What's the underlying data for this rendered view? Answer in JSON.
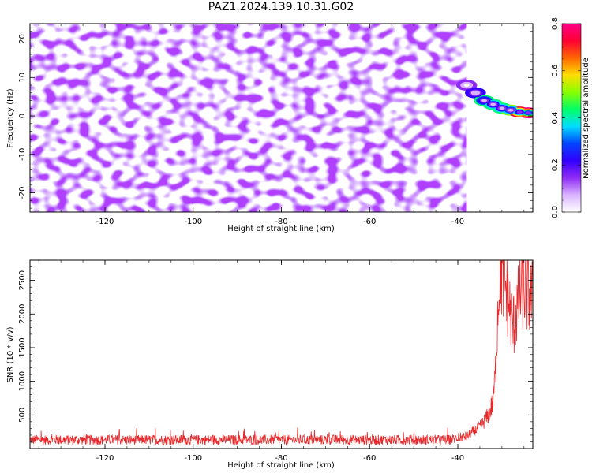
{
  "title": "PAZ1.2024.139.10.31.G02",
  "chart_data": [
    {
      "type": "heatmap",
      "xlabel": "Height of straight line (km)",
      "ylabel": "Frequency (Hz)",
      "xlim": [
        -137,
        -23
      ],
      "ylim": [
        -25,
        24
      ],
      "xticks": [
        -120,
        -100,
        -80,
        -60,
        -40
      ],
      "yticks": [
        -20,
        -10,
        0,
        10,
        20
      ],
      "colorbar": {
        "label": "Normalized spectral amplitude",
        "range": [
          0.0,
          0.8
        ],
        "ticks": [
          0.0,
          0.2,
          0.4,
          0.6,
          0.8
        ],
        "colors": [
          "#ffffff",
          "#d9b3ff",
          "#8f2bf5",
          "#3300ff",
          "#0044ff",
          "#00ddff",
          "#00ff66",
          "#88ff00",
          "#ffdd00",
          "#ff6600",
          "#ff0033",
          "#ff0088"
        ]
      },
      "noise_region": {
        "x": [
          -137,
          -38
        ],
        "y": [
          -25,
          24
        ],
        "amplitude_range": [
          0.0,
          0.2
        ]
      },
      "signal_ridge": [
        {
          "x": -38,
          "y": 8,
          "amp": 0.15
        },
        {
          "x": -36,
          "y": 6,
          "amp": 0.25
        },
        {
          "x": -34,
          "y": 4,
          "amp": 0.4
        },
        {
          "x": -32,
          "y": 3,
          "amp": 0.45
        },
        {
          "x": -30,
          "y": 2,
          "amp": 0.45
        },
        {
          "x": -28,
          "y": 1.5,
          "amp": 0.5
        },
        {
          "x": -26,
          "y": 1,
          "amp": 0.7
        },
        {
          "x": -24,
          "y": 0.8,
          "amp": 0.8
        }
      ]
    },
    {
      "type": "line",
      "xlabel": "Height of straight line (km)",
      "ylabel": "SNR (10 * v/v)",
      "xlim": [
        -137,
        -23
      ],
      "ylim": [
        0,
        2800
      ],
      "xticks": [
        -120,
        -100,
        -80,
        -60,
        -40
      ],
      "yticks": [
        500,
        1000,
        1500,
        2000,
        2500
      ],
      "series": [
        {
          "color": "#e8282a",
          "baseline": 130,
          "envelope": [
            {
              "x": -137,
              "y": 130
            },
            {
              "x": -42,
              "y": 130
            },
            {
              "x": -38,
              "y": 180
            },
            {
              "x": -35,
              "y": 320
            },
            {
              "x": -33,
              "y": 500
            },
            {
              "x": -32,
              "y": 700
            },
            {
              "x": -31.5,
              "y": 1100
            },
            {
              "x": -31,
              "y": 2000
            },
            {
              "x": -30.5,
              "y": 2650
            },
            {
              "x": -29.5,
              "y": 2500
            },
            {
              "x": -28.5,
              "y": 2200
            },
            {
              "x": -27.5,
              "y": 1800
            },
            {
              "x": -26.5,
              "y": 2100
            },
            {
              "x": -25.5,
              "y": 2400
            },
            {
              "x": -24,
              "y": 2300
            },
            {
              "x": -23,
              "y": 2200
            }
          ]
        }
      ]
    }
  ]
}
